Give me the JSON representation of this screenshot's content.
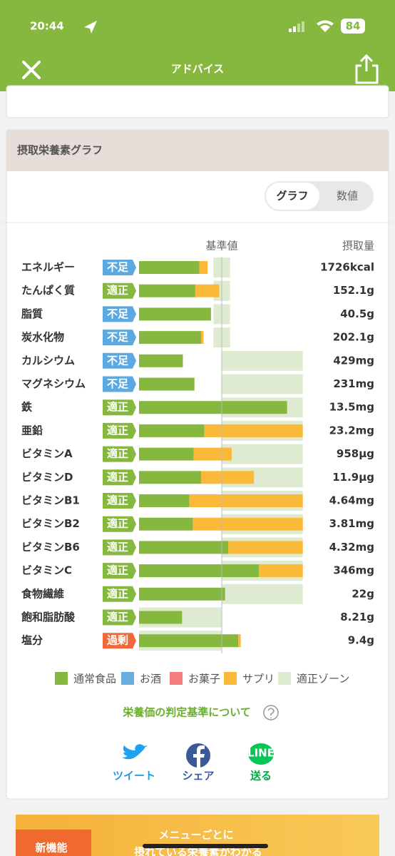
{
  "status_bar": {
    "time": "20:44",
    "battery": "84"
  },
  "header": {
    "title": "アドバイス"
  },
  "section": {
    "title": "摂取栄養素グラフ",
    "toggle": [
      "グラフ",
      "数値"
    ]
  },
  "chart_data": {
    "type": "bar",
    "orientation": "horizontal",
    "stacked": true,
    "reference_label": "基準値",
    "intake_label": "摂取量",
    "reference": 100,
    "xlim": [
      0,
      200
    ],
    "categories": [
      "エネルギー",
      "たんぱく質",
      "脂質",
      "炭水化物",
      "カルシウム",
      "マグネシウム",
      "鉄",
      "亜鉛",
      "ビタミンA",
      "ビタミンD",
      "ビタミンB1",
      "ビタミンB2",
      "ビタミンB6",
      "ビタミンC",
      "食物繊維",
      "飽和脂肪酸",
      "塩分"
    ],
    "status": [
      "不足",
      "適正",
      "不足",
      "不足",
      "不足",
      "不足",
      "適正",
      "適正",
      "適正",
      "適正",
      "適正",
      "適正",
      "適正",
      "適正",
      "適正",
      "適正",
      "過剰"
    ],
    "status_colors": [
      "#5ca8e0",
      "#86b83f",
      "#5ca8e0",
      "#5ca8e0",
      "#5ca8e0",
      "#5ca8e0",
      "#86b83f",
      "#86b83f",
      "#86b83f",
      "#86b83f",
      "#86b83f",
      "#86b83f",
      "#86b83f",
      "#86b83f",
      "#86b83f",
      "#86b83f",
      "#f0693a"
    ],
    "intake": [
      "1726kcal",
      "152.1g",
      "40.5g",
      "202.1g",
      "429mg",
      "231mg",
      "13.5mg",
      "23.2mg",
      "958μg",
      "11.9μg",
      "4.64mg",
      "3.81mg",
      "4.32mg",
      "346mg",
      "22g",
      "8.21g",
      "9.4g"
    ],
    "series": [
      {
        "name": "通常食品",
        "color": "#86b83f",
        "values": [
          73,
          68,
          87,
          75,
          53,
          67,
          179,
          79,
          66,
          75,
          61,
          65,
          108,
          145,
          104,
          52,
          120
        ]
      },
      {
        "name": "お酒",
        "color": "#6aaee0",
        "values": [
          0,
          0,
          0,
          0,
          0,
          0,
          0,
          0,
          0,
          0,
          0,
          0,
          0,
          0,
          0,
          0,
          0
        ]
      },
      {
        "name": "お菓子",
        "color": "#f47c7c",
        "values": [
          0,
          0,
          0,
          0,
          0,
          0,
          0,
          0,
          0,
          0,
          0,
          0,
          0,
          0,
          0,
          0,
          0
        ]
      },
      {
        "name": "サプリ",
        "color": "#fbb93a",
        "values": [
          10,
          29,
          0,
          3,
          0,
          0,
          0,
          119,
          46,
          64,
          137,
          133,
          90,
          53,
          0,
          0,
          3
        ]
      }
    ],
    "zone": {
      "name": "適正ゾーン",
      "color": "#dfebd0",
      "ranges": [
        [
          90,
          110
        ],
        [
          90,
          110
        ],
        [
          90,
          110
        ],
        [
          90,
          110
        ],
        [
          100,
          198
        ],
        [
          100,
          198
        ],
        [
          100,
          198
        ],
        [
          100,
          198
        ],
        [
          100,
          198
        ],
        [
          100,
          198
        ],
        [
          100,
          198
        ],
        [
          100,
          198
        ],
        [
          100,
          198
        ],
        [
          100,
          198
        ],
        [
          100,
          198
        ],
        [
          0,
          100
        ],
        [
          0,
          100
        ]
      ]
    }
  },
  "criteria_link": "栄養価の判定基準について",
  "share": [
    "ツイート",
    "シェア",
    "送る"
  ],
  "share_line_icon": "LINE",
  "banner": {
    "badge": "新機能",
    "line1": "メニューごとに",
    "line2": "摂れている栄養素がわかる"
  }
}
